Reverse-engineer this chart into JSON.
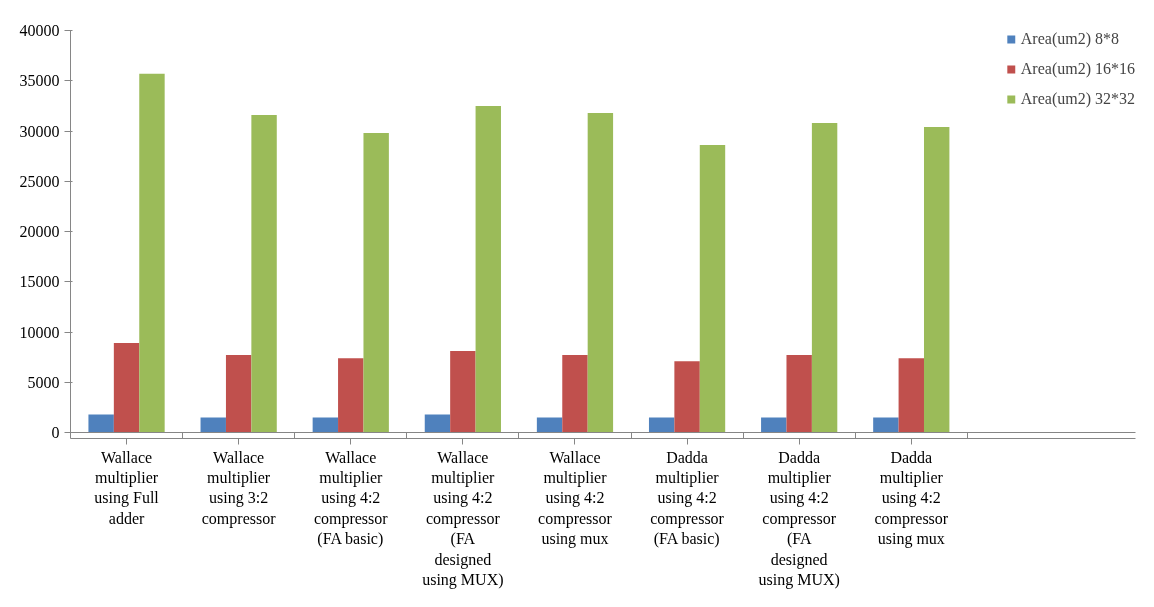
{
  "chart_data": {
    "type": "bar",
    "categories": [
      "Wallace\nmultiplier\nusing Full\nadder",
      "Wallace\nmultiplier\nusing 3:2\ncompressor",
      "Wallace\nmultiplier\nusing 4:2\ncompressor\n(FA basic)",
      "Wallace\nmultiplier\nusing 4:2\ncompressor\n(FA\ndesigned\nusing MUX)",
      "Wallace\nmultiplier\nusing 4:2\ncompressor\nusing mux",
      "Dadda\nmultiplier\nusing 4:2\ncompressor\n(FA basic)",
      "Dadda\nmultiplier\nusing 4:2\ncompressor\n(FA\ndesigned\nusing MUX)",
      "Dadda\nmultiplier\nusing 4:2\ncompressor\nusing mux"
    ],
    "series": [
      {
        "name": "Area(um2) 8*8",
        "color": "#4f81bd",
        "values": [
          1800,
          1500,
          1500,
          1800,
          1500,
          1500,
          1500,
          1500
        ]
      },
      {
        "name": "Area(um2) 16*16",
        "color": "#c0504d",
        "values": [
          8900,
          7700,
          7400,
          8100,
          7700,
          7100,
          7700,
          7400
        ]
      },
      {
        "name": "Area(um2) 32*32",
        "color": "#9bbb59",
        "values": [
          35700,
          31600,
          29800,
          32500,
          31800,
          28600,
          30800,
          30400
        ]
      }
    ],
    "ylim": [
      0,
      40000
    ],
    "yticks": [
      0,
      5000,
      10000,
      15000,
      20000,
      25000,
      30000,
      35000,
      40000
    ],
    "grid": false,
    "legend": "top right"
  }
}
